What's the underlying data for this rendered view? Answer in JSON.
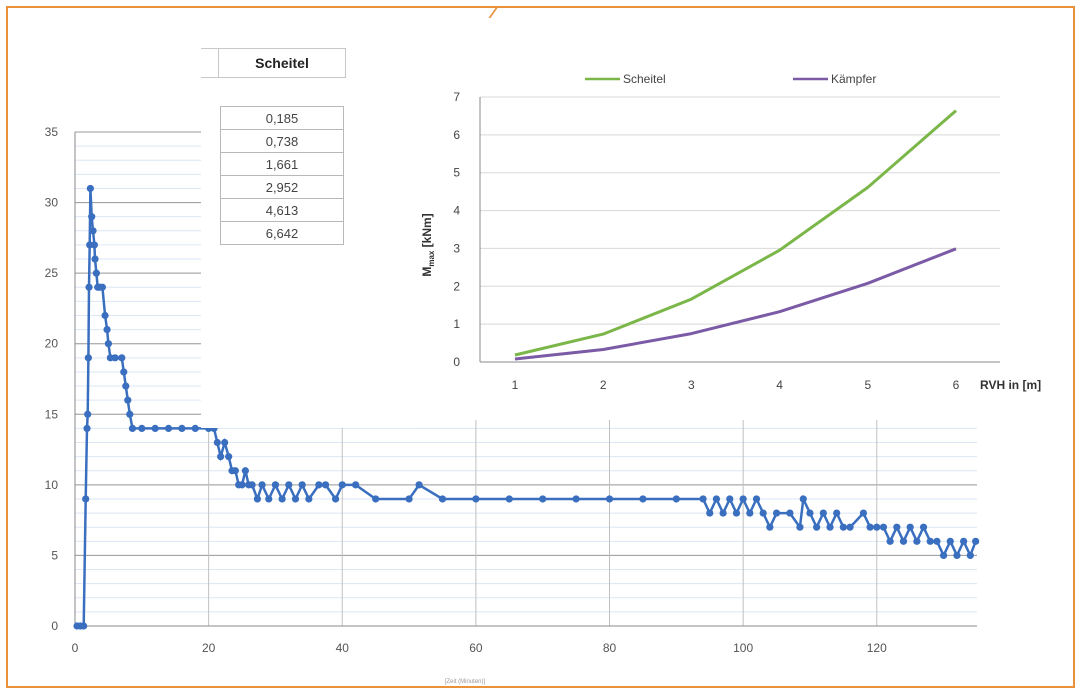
{
  "chart_data": [
    {
      "type": "scatter",
      "title": "",
      "xlabel": "[Zeit (Minuten)]",
      "ylabel": "",
      "xlim": [
        0,
        135
      ],
      "ylim": [
        0,
        35
      ],
      "x_ticks": [
        "0",
        "20",
        "40",
        "60",
        "80",
        "100",
        "120"
      ],
      "y_ticks": [
        "0",
        "5",
        "10",
        "15",
        "20",
        "25",
        "30",
        "35"
      ],
      "grid": true,
      "series_color": "#3a6fc0",
      "series": [
        {
          "name": "",
          "points": [
            [
              0.3,
              0
            ],
            [
              0.8,
              0
            ],
            [
              1.3,
              0
            ],
            [
              1.6,
              9
            ],
            [
              1.8,
              14
            ],
            [
              1.9,
              15
            ],
            [
              2.0,
              19
            ],
            [
              2.1,
              24
            ],
            [
              2.2,
              27
            ],
            [
              2.3,
              31
            ],
            [
              2.5,
              29
            ],
            [
              2.7,
              28
            ],
            [
              2.9,
              27
            ],
            [
              3.0,
              26
            ],
            [
              3.2,
              25
            ],
            [
              3.4,
              24
            ],
            [
              3.7,
              24
            ],
            [
              4.1,
              24
            ],
            [
              4.5,
              22
            ],
            [
              4.8,
              21
            ],
            [
              5.0,
              20
            ],
            [
              5.3,
              19
            ],
            [
              6.0,
              19
            ],
            [
              7.0,
              19
            ],
            [
              7.3,
              18
            ],
            [
              7.6,
              17
            ],
            [
              7.9,
              16
            ],
            [
              8.2,
              15
            ],
            [
              8.6,
              14
            ],
            [
              10.0,
              14
            ],
            [
              12.0,
              14
            ],
            [
              14.0,
              14
            ],
            [
              16.0,
              14
            ],
            [
              18.0,
              14
            ],
            [
              20.0,
              14
            ],
            [
              20.8,
              14
            ],
            [
              21.3,
              13
            ],
            [
              21.8,
              12
            ],
            [
              22.4,
              13
            ],
            [
              23.0,
              12
            ],
            [
              23.5,
              11
            ],
            [
              24.0,
              11
            ],
            [
              24.5,
              10
            ],
            [
              25.0,
              10
            ],
            [
              25.5,
              11
            ],
            [
              26.0,
              10
            ],
            [
              26.5,
              10
            ],
            [
              27.3,
              9
            ],
            [
              28.0,
              10
            ],
            [
              29.0,
              9
            ],
            [
              30.0,
              10
            ],
            [
              31.0,
              9
            ],
            [
              32.0,
              10
            ],
            [
              33.0,
              9
            ],
            [
              34.0,
              10
            ],
            [
              35.0,
              9
            ],
            [
              36.5,
              10
            ],
            [
              37.5,
              10
            ],
            [
              39.0,
              9
            ],
            [
              40.0,
              10
            ],
            [
              42.0,
              10
            ],
            [
              45.0,
              9
            ],
            [
              50.0,
              9
            ],
            [
              51.5,
              10
            ],
            [
              55.0,
              9
            ],
            [
              60.0,
              9
            ],
            [
              65.0,
              9
            ],
            [
              70.0,
              9
            ],
            [
              75.0,
              9
            ],
            [
              80.0,
              9
            ],
            [
              85.0,
              9
            ],
            [
              90.0,
              9
            ],
            [
              94.0,
              9
            ],
            [
              95.0,
              8
            ],
            [
              96.0,
              9
            ],
            [
              97.0,
              8
            ],
            [
              98.0,
              9
            ],
            [
              99.0,
              8
            ],
            [
              100.0,
              9
            ],
            [
              101.0,
              8
            ],
            [
              102.0,
              9
            ],
            [
              103.0,
              8
            ],
            [
              104.0,
              7
            ],
            [
              105.0,
              8
            ],
            [
              107.0,
              8
            ],
            [
              108.5,
              7
            ],
            [
              109.0,
              9
            ],
            [
              110.0,
              8
            ],
            [
              111.0,
              7
            ],
            [
              112.0,
              8
            ],
            [
              113.0,
              7
            ],
            [
              114.0,
              8
            ],
            [
              115.0,
              7
            ],
            [
              116.0,
              7
            ],
            [
              118.0,
              8
            ],
            [
              119.0,
              7
            ],
            [
              120.0,
              7
            ],
            [
              121.0,
              7
            ],
            [
              122.0,
              6
            ],
            [
              123.0,
              7
            ],
            [
              124.0,
              6
            ],
            [
              125.0,
              7
            ],
            [
              126.0,
              6
            ],
            [
              127.0,
              7
            ],
            [
              128.0,
              6
            ],
            [
              129.0,
              6
            ],
            [
              130.0,
              5
            ],
            [
              131.0,
              6
            ],
            [
              132.0,
              5
            ],
            [
              133.0,
              6
            ],
            [
              134.0,
              5
            ],
            [
              134.8,
              6
            ]
          ]
        }
      ]
    },
    {
      "type": "line",
      "title": "",
      "xlabel": "RVH in [m]",
      "ylabel": "M_max [kNm]",
      "ylabel_main": "M",
      "ylabel_sub": "max",
      "ylabel_rest": " [kNm]",
      "x": [
        1,
        2,
        3,
        4,
        5,
        6
      ],
      "x_ticks": [
        "1",
        "2",
        "3",
        "4",
        "5",
        "6"
      ],
      "y_ticks": [
        "0",
        "1",
        "2",
        "3",
        "4",
        "5",
        "6",
        "7"
      ],
      "ylim": [
        0,
        7
      ],
      "grid": true,
      "legend_position": "top",
      "series": [
        {
          "name": "Scheitel",
          "color": "#7ab648",
          "values": [
            0.185,
            0.738,
            1.661,
            2.952,
            4.613,
            6.642
          ]
        },
        {
          "name": "Kämpfer",
          "color": "#7b5aa6",
          "values": [
            0.08,
            0.33,
            0.75,
            1.33,
            2.08,
            2.99
          ]
        }
      ]
    }
  ],
  "table": {
    "header": "Scheitel",
    "values": [
      "0,185",
      "0,738",
      "1,661",
      "2,952",
      "4,613",
      "6,642"
    ]
  },
  "colors": {
    "frame": "#e8903a"
  }
}
